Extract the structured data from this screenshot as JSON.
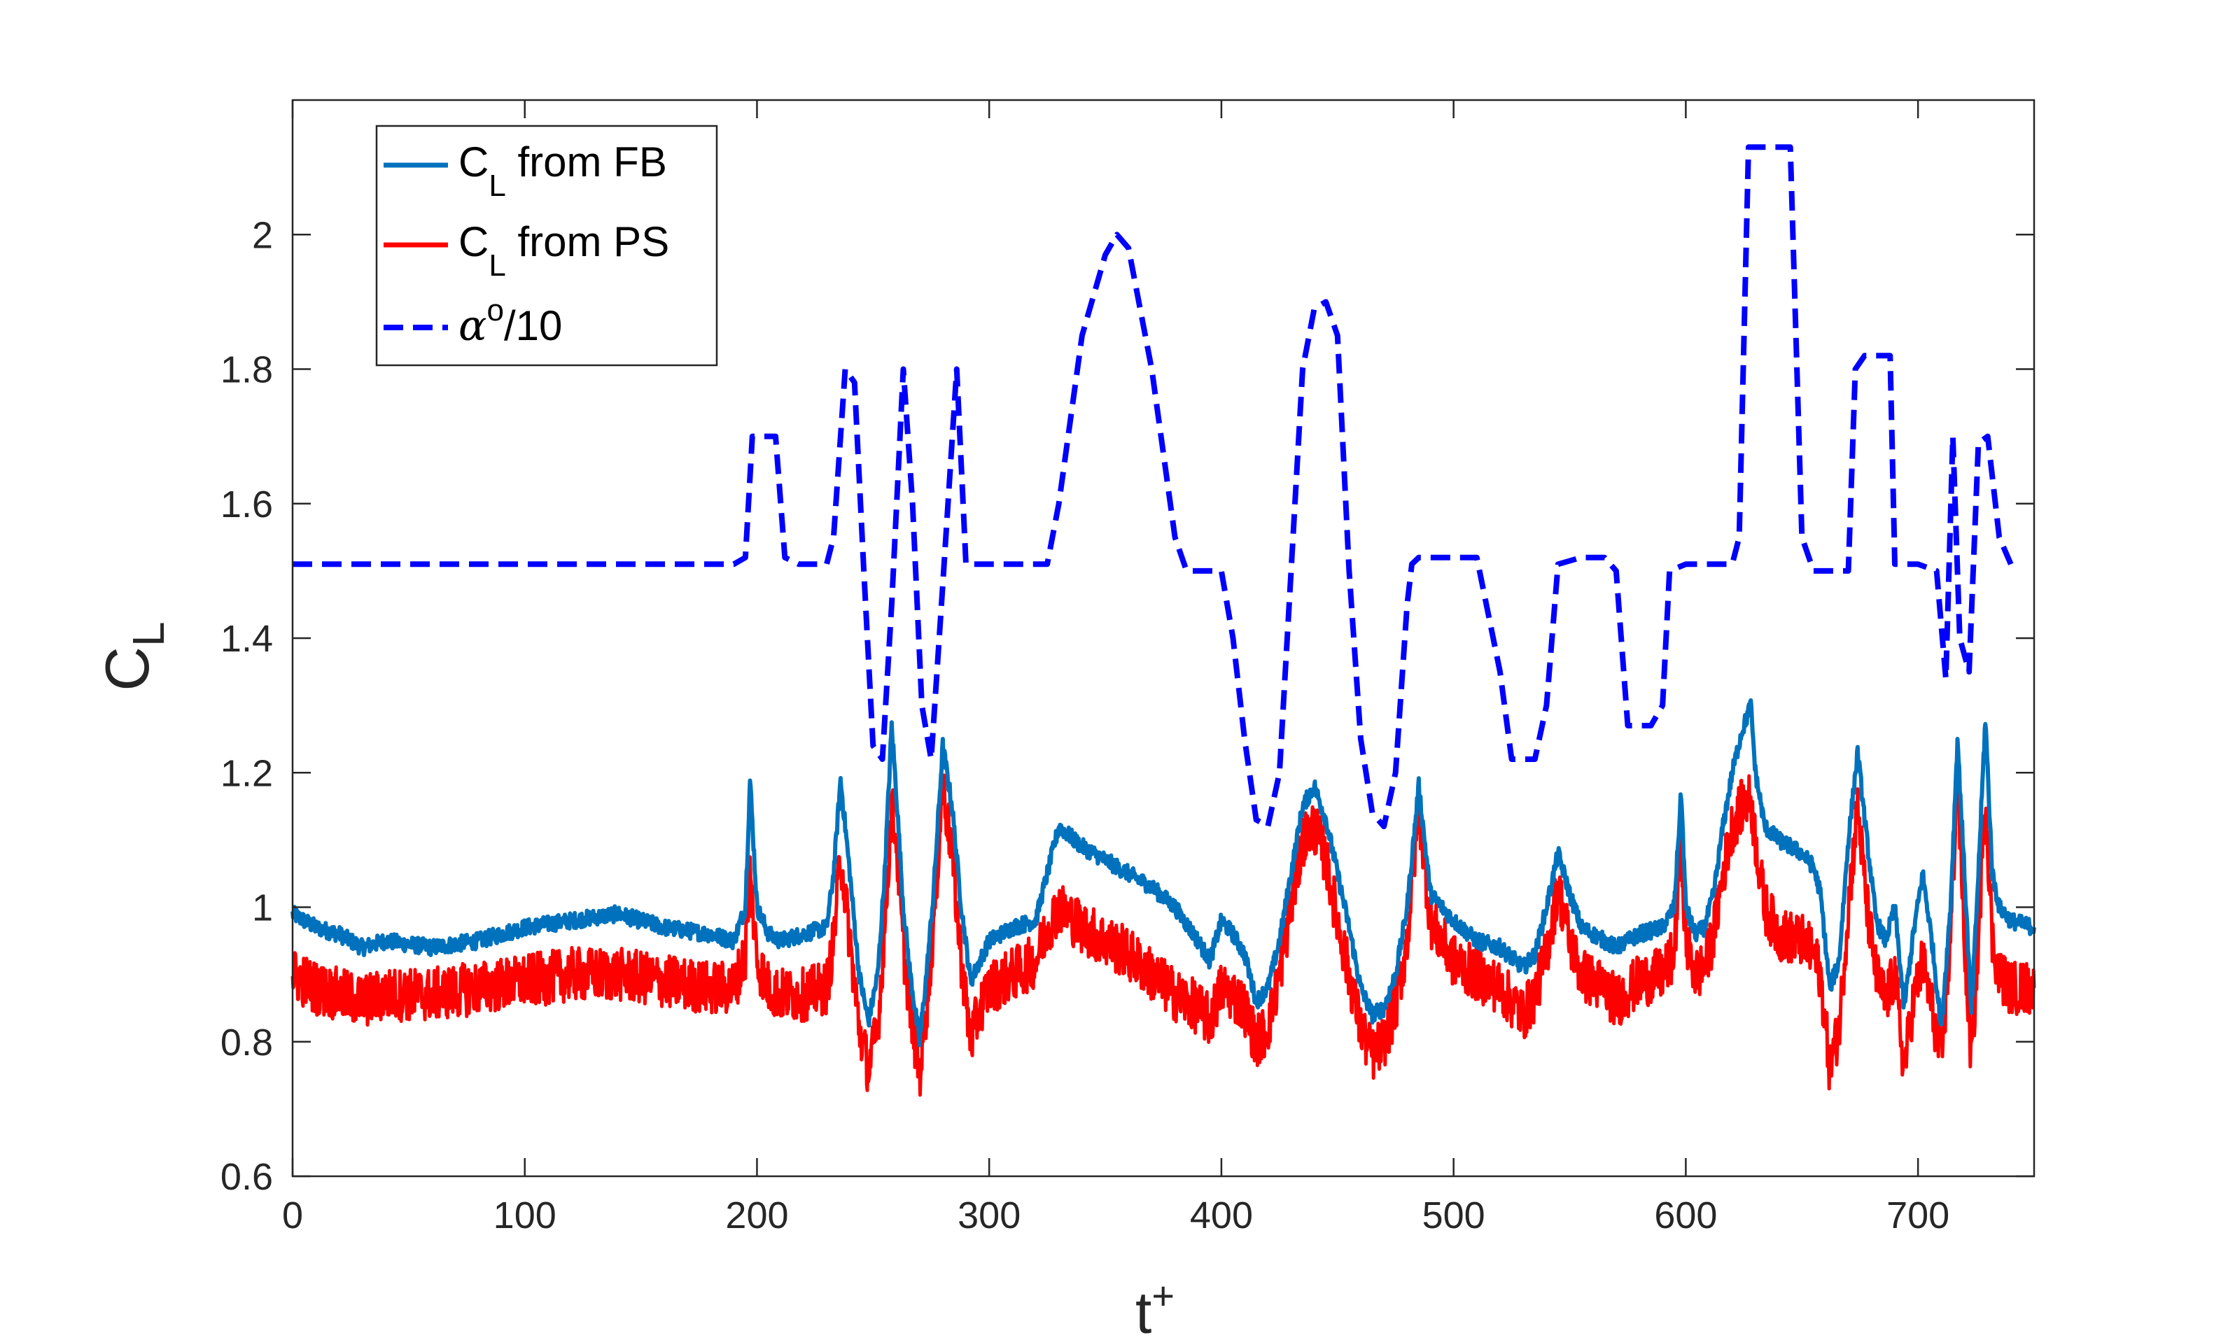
{
  "chart_data": {
    "type": "line",
    "title": "",
    "xlabel": "t",
    "xlabel_superscript": "+",
    "ylabel": "C",
    "ylabel_subscript": "L",
    "xlim": [
      0,
      750
    ],
    "ylim": [
      0.6,
      2.2
    ],
    "x_ticks": [
      0,
      100,
      200,
      300,
      400,
      500,
      600,
      700
    ],
    "x_tick_labels": [
      "0",
      "100",
      "200",
      "300",
      "400",
      "500",
      "600",
      "700"
    ],
    "y_ticks": [
      0.6,
      0.8,
      1.0,
      1.2,
      1.4,
      1.6,
      1.8,
      2.0
    ],
    "y_tick_labels": [
      "0.6",
      "0.8",
      "1",
      "1.2",
      "1.4",
      "1.6",
      "1.8",
      "2"
    ],
    "grid": false,
    "legend_position": "top-left",
    "series": [
      {
        "name": "C_L from FB",
        "legend_main": "C",
        "legend_sub": "L",
        "legend_rest": " from FB",
        "color": "#0072BD",
        "style": "solid",
        "noise": 0.012,
        "x": [
          0,
          10,
          20,
          30,
          40,
          60,
          80,
          100,
          120,
          140,
          160,
          180,
          190,
          195,
          197,
          200,
          205,
          210,
          220,
          230,
          233,
          236,
          240,
          244,
          248,
          252,
          255,
          258,
          260,
          263,
          266,
          270,
          273,
          276,
          280,
          284,
          288,
          292,
          296,
          300,
          310,
          320,
          325,
          330,
          340,
          350,
          360,
          370,
          380,
          390,
          395,
          400,
          405,
          410,
          415,
          420,
          425,
          430,
          435,
          440,
          445,
          450,
          455,
          460,
          465,
          470,
          475,
          480,
          485,
          490,
          500,
          510,
          520,
          530,
          535,
          540,
          545,
          550,
          555,
          560,
          565,
          570,
          580,
          590,
          595,
          598,
          600,
          604,
          608,
          612,
          616,
          620,
          624,
          628,
          630,
          634,
          640,
          650,
          655,
          658,
          662,
          666,
          670,
          674,
          678,
          682,
          686,
          690,
          694,
          698,
          702,
          706,
          710,
          714,
          717,
          720,
          723,
          726,
          729,
          732,
          735,
          740,
          750
        ],
        "y": [
          0.99,
          0.97,
          0.96,
          0.94,
          0.95,
          0.94,
          0.95,
          0.97,
          0.98,
          0.99,
          0.97,
          0.96,
          0.95,
          1.0,
          1.19,
          1.0,
          0.96,
          0.95,
          0.96,
          0.97,
          1.05,
          1.19,
          1.05,
          0.9,
          0.83,
          0.9,
          1.05,
          1.27,
          1.17,
          1.0,
          0.9,
          0.8,
          0.9,
          1.02,
          1.24,
          1.15,
          1.0,
          0.89,
          0.92,
          0.95,
          0.97,
          0.98,
          1.05,
          1.12,
          1.09,
          1.07,
          1.05,
          1.03,
          1.0,
          0.95,
          0.92,
          0.98,
          0.96,
          0.93,
          0.86,
          0.88,
          0.95,
          1.05,
          1.15,
          1.18,
          1.13,
          1.05,
          0.97,
          0.88,
          0.84,
          0.85,
          0.9,
          1.0,
          1.18,
          1.02,
          0.98,
          0.95,
          0.94,
          0.91,
          0.93,
          1.0,
          1.08,
          1.02,
          0.97,
          0.96,
          0.95,
          0.94,
          0.96,
          0.97,
          1.0,
          1.17,
          1.0,
          0.96,
          0.97,
          1.02,
          1.12,
          1.2,
          1.26,
          1.3,
          1.2,
          1.12,
          1.1,
          1.08,
          1.06,
          1.02,
          0.88,
          0.92,
          1.1,
          1.23,
          1.1,
          0.98,
          0.95,
          1.0,
          0.85,
          0.96,
          1.05,
          0.95,
          0.82,
          1.0,
          1.25,
          1.05,
          0.84,
          1.05,
          1.28,
          1.05,
          1.0,
          0.98,
          0.97
        ]
      },
      {
        "name": "C_L from PS",
        "legend_main": "C",
        "legend_sub": "L",
        "legend_rest": " from PS",
        "color": "#FF0000",
        "style": "solid",
        "noise": 0.04,
        "x": [
          0,
          10,
          20,
          30,
          40,
          60,
          80,
          100,
          120,
          140,
          160,
          180,
          190,
          195,
          197,
          200,
          205,
          210,
          220,
          230,
          233,
          236,
          240,
          244,
          248,
          252,
          255,
          258,
          260,
          263,
          266,
          270,
          273,
          276,
          280,
          284,
          288,
          292,
          296,
          300,
          310,
          320,
          325,
          330,
          340,
          350,
          360,
          370,
          380,
          390,
          395,
          400,
          405,
          410,
          415,
          420,
          425,
          430,
          435,
          440,
          445,
          450,
          455,
          460,
          465,
          470,
          475,
          480,
          485,
          490,
          500,
          510,
          520,
          530,
          535,
          540,
          545,
          550,
          555,
          560,
          565,
          570,
          580,
          590,
          595,
          598,
          600,
          604,
          608,
          612,
          616,
          620,
          624,
          628,
          630,
          634,
          640,
          650,
          655,
          658,
          662,
          666,
          670,
          674,
          678,
          682,
          686,
          690,
          694,
          698,
          702,
          706,
          710,
          714,
          717,
          720,
          723,
          726,
          729,
          732,
          735,
          740,
          750
        ],
        "y": [
          0.9,
          0.88,
          0.87,
          0.86,
          0.87,
          0.87,
          0.88,
          0.89,
          0.9,
          0.9,
          0.89,
          0.88,
          0.88,
          0.93,
          1.05,
          0.92,
          0.88,
          0.87,
          0.87,
          0.88,
          0.95,
          1.08,
          0.95,
          0.82,
          0.76,
          0.82,
          0.97,
          1.15,
          1.1,
          0.94,
          0.85,
          0.75,
          0.85,
          0.97,
          1.18,
          1.08,
          0.92,
          0.8,
          0.85,
          0.88,
          0.9,
          0.92,
          0.97,
          1.0,
          0.97,
          0.95,
          0.93,
          0.9,
          0.87,
          0.85,
          0.83,
          0.88,
          0.87,
          0.85,
          0.8,
          0.82,
          0.9,
          1.0,
          1.1,
          1.12,
          1.07,
          0.98,
          0.9,
          0.82,
          0.78,
          0.8,
          0.85,
          0.95,
          1.15,
          0.98,
          0.92,
          0.9,
          0.88,
          0.84,
          0.87,
          0.93,
          1.03,
          0.95,
          0.9,
          0.89,
          0.88,
          0.86,
          0.89,
          0.9,
          0.93,
          1.1,
          0.95,
          0.9,
          0.91,
          0.96,
          1.05,
          1.12,
          1.15,
          1.16,
          1.1,
          1.0,
          0.96,
          0.95,
          0.93,
          0.9,
          0.76,
          0.82,
          1.0,
          1.15,
          1.0,
          0.9,
          0.86,
          0.9,
          0.76,
          0.86,
          0.92,
          0.85,
          0.77,
          0.95,
          1.2,
          0.95,
          0.77,
          0.95,
          1.17,
          0.95,
          0.9,
          0.88,
          0.88
        ]
      },
      {
        "name": "alpha/10",
        "legend_main": "α",
        "legend_sup": "o",
        "legend_rest": "/10",
        "color": "#0000FF",
        "style": "dashed",
        "noise": 0,
        "x": [
          0,
          190,
          195,
          198,
          208,
          212,
          218,
          230,
          233,
          238,
          242,
          246,
          250,
          254,
          258,
          263,
          267,
          271,
          275,
          280,
          286,
          290,
          294,
          300,
          310,
          325,
          330,
          340,
          350,
          355,
          360,
          370,
          380,
          385,
          400,
          405,
          410,
          415,
          420,
          425,
          430,
          435,
          440,
          445,
          450,
          455,
          460,
          465,
          470,
          475,
          480,
          482,
          485,
          500,
          510,
          520,
          525,
          535,
          540,
          545,
          555,
          565,
          570,
          575,
          585,
          590,
          593,
          600,
          620,
          623,
          627,
          633,
          645,
          650,
          655,
          660,
          670,
          673,
          677,
          683,
          688,
          690,
          693,
          700,
          708,
          712,
          715,
          718,
          722,
          726,
          730,
          735,
          740
        ],
        "y": [
          1.51,
          1.51,
          1.52,
          1.7,
          1.7,
          1.52,
          1.51,
          1.51,
          1.55,
          1.8,
          1.78,
          1.5,
          1.24,
          1.22,
          1.45,
          1.8,
          1.6,
          1.3,
          1.22,
          1.48,
          1.8,
          1.51,
          1.51,
          1.51,
          1.51,
          1.51,
          1.6,
          1.85,
          1.97,
          2.0,
          1.98,
          1.8,
          1.55,
          1.5,
          1.5,
          1.4,
          1.25,
          1.13,
          1.12,
          1.2,
          1.5,
          1.8,
          1.89,
          1.9,
          1.85,
          1.5,
          1.25,
          1.14,
          1.12,
          1.2,
          1.45,
          1.51,
          1.52,
          1.52,
          1.52,
          1.35,
          1.22,
          1.22,
          1.3,
          1.51,
          1.52,
          1.52,
          1.5,
          1.27,
          1.27,
          1.3,
          1.5,
          1.51,
          1.51,
          1.55,
          2.13,
          2.13,
          2.13,
          1.55,
          1.5,
          1.5,
          1.5,
          1.8,
          1.82,
          1.82,
          1.82,
          1.51,
          1.51,
          1.51,
          1.5,
          1.34,
          1.7,
          1.4,
          1.35,
          1.69,
          1.7,
          1.55,
          1.51
        ]
      }
    ]
  }
}
